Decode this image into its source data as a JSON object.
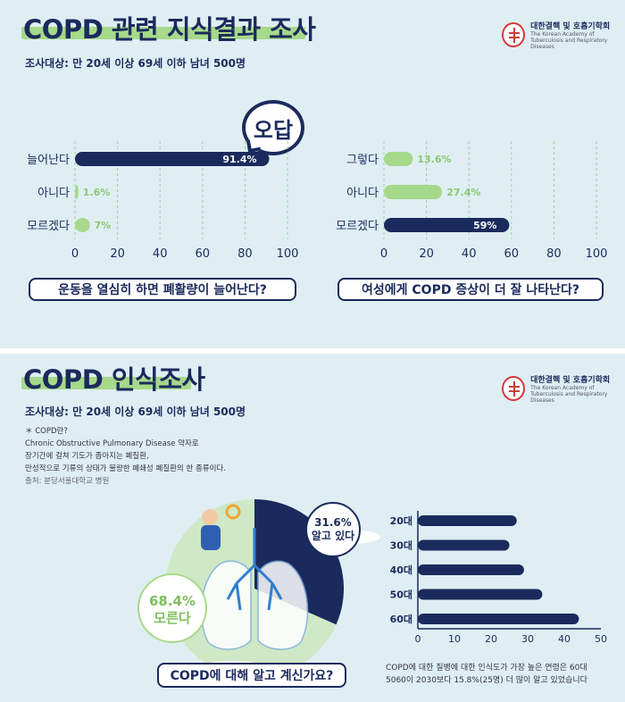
{
  "top": {
    "title": "COPD 관련 지식결과 조사",
    "subtitle": "조사대상: 만 20세 이상 69세 이하 남녀 500명",
    "logo": {
      "name": "대한결핵 및 호흡기학회",
      "en1": "The Korean Academy of",
      "en2": "Tuberculosis and Respiratory Diseases"
    },
    "bubble": "오답",
    "q1": "운동을 열심히 하면 폐활량이 늘어난다?",
    "q2": "여성에게 COPD 증상이 더 잘 나타난다?"
  },
  "bottom": {
    "title": "COPD 인식조사",
    "subtitle": "조사대상: 만 20세 이상 69세 이하 남녀 500명",
    "logo": {
      "name": "대한결핵 및 호흡기학회",
      "en1": "The Korean Academy of",
      "en2": "Tuberculosis and Respiratory Diseases"
    },
    "note_title": "＊ COPD란?",
    "note_lines": [
      "Chronic Obstructive Pulmonary Disease 약자로",
      "장기간에 걸쳐 기도가 좁아지는 폐질환,",
      "만성적으로 기류의 상태가 불량한 폐쇄성 폐질환의 한 종류이다."
    ],
    "note_source": "출처: 분당서울대학교 병원",
    "question": "COPD에 대해 알고 계신가요?",
    "footnote_lines": [
      "COPD에 대한 질병에 대한 인식도가 가장 높은 연령은 60대",
      "5060이 2030보다 15.8%(25명) 더 많이 알고 있었습니다"
    ]
  },
  "colors": {
    "navy": "#1b2a5c",
    "green": "#a6d98a",
    "bg": "#dfeef3",
    "grid": "#9fd39a"
  },
  "chart_data": [
    {
      "type": "bar",
      "orientation": "horizontal",
      "categories": [
        "늘어난다",
        "아니다",
        "모르겠다"
      ],
      "values": [
        91.4,
        1.6,
        7
      ],
      "labels": [
        "91.4%",
        "1.6%",
        "7%"
      ],
      "xticks": [
        "0",
        "20",
        "40",
        "60",
        "80",
        "100"
      ],
      "xlim": [
        0,
        100
      ],
      "highlight": "늘어난다"
    },
    {
      "type": "bar",
      "orientation": "horizontal",
      "categories": [
        "그렇다",
        "아니다",
        "모르겠다"
      ],
      "values": [
        13.6,
        27.4,
        59
      ],
      "labels": [
        "13.6%",
        "27.4%",
        "59%"
      ],
      "xticks": [
        "0",
        "20",
        "40",
        "60",
        "80",
        "100"
      ],
      "xlim": [
        0,
        100
      ],
      "highlight": "모르겠다"
    },
    {
      "type": "pie",
      "categories": [
        "알고 있다",
        "모른다"
      ],
      "values": [
        31.6,
        68.4
      ],
      "labels": [
        "31.6%",
        "68.4%"
      ]
    },
    {
      "type": "bar",
      "orientation": "horizontal",
      "categories": [
        "20대",
        "30대",
        "40대",
        "50대",
        "60대"
      ],
      "values": [
        27,
        25,
        29,
        34,
        44
      ],
      "xticks": [
        "0",
        "10",
        "20",
        "30",
        "40",
        "50"
      ],
      "xlim": [
        0,
        50
      ]
    }
  ]
}
